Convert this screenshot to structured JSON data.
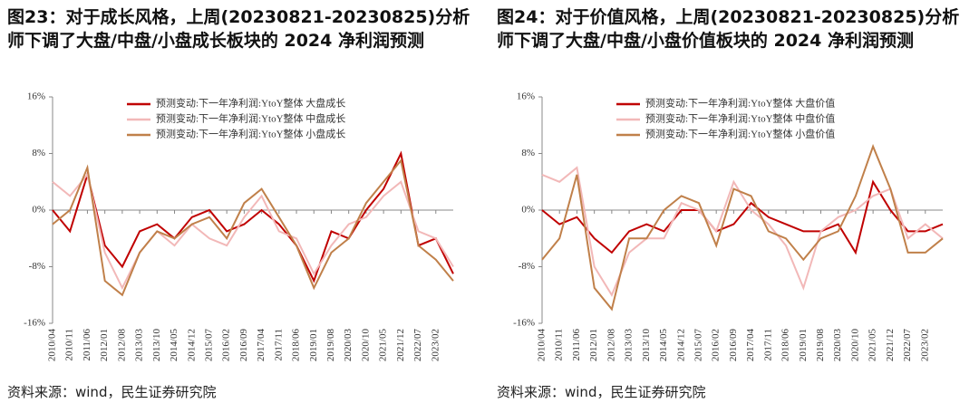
{
  "chart_data": [
    {
      "type": "line",
      "title": "图23：对于成长风格，上周(20230821-20230825)分析师下调了大盘/中盘/小盘成长板块的 2024 净利润预测",
      "source": "资料来源：wind，民生证券研究院",
      "categories": [
        "2010/04",
        "2010/11",
        "2011/06",
        "2012/01",
        "2012/08",
        "2013/03",
        "2013/10",
        "2014/05",
        "2014/12",
        "2015/07",
        "2016/02",
        "2016/09",
        "2017/04",
        "2017/11",
        "2018/06",
        "2019/01",
        "2019/08",
        "2020/03",
        "2020/10",
        "2021/05",
        "2021/12",
        "2022/07",
        "2023/02",
        null
      ],
      "ylim": [
        -16,
        16
      ],
      "yticks": [
        {
          "value": 16,
          "label": "16%"
        },
        {
          "value": 8,
          "label": "8%"
        },
        {
          "value": 0,
          "label": "0%"
        },
        {
          "value": -8,
          "label": "-8%"
        },
        {
          "value": -16,
          "label": "-16%"
        }
      ],
      "legend": "top",
      "series": [
        {
          "name": "预测变动:下一年净利润:YtoY整体 大盘成长",
          "color": "#c00000",
          "values": [
            0,
            -3,
            5,
            -5,
            -8,
            -3,
            -2,
            -4,
            -1,
            0,
            -3,
            -2,
            0,
            -2,
            -5,
            -10,
            -3,
            -4,
            0,
            3,
            8,
            -5,
            -4,
            -9
          ]
        },
        {
          "name": "预测变动:下一年净利润:YtoY整体 中盘成长",
          "color": "#f2b8b8",
          "values": [
            4,
            2,
            5,
            -6,
            -11,
            -6,
            -3,
            -5,
            -2,
            -4,
            -5,
            -1,
            2,
            -3,
            -4,
            -9,
            -5,
            -2,
            -1,
            2,
            4,
            -3,
            -4,
            -8
          ]
        },
        {
          "name": "预测变动:下一年净利润:YtoY整体 小盘成长",
          "color": "#c0804a",
          "values": [
            -2,
            0,
            6,
            -10,
            -12,
            -6,
            -3,
            -4,
            -2,
            -1,
            -4,
            1,
            3,
            -1,
            -5,
            -11,
            -6,
            -4,
            1,
            4,
            7,
            -5,
            -7,
            -10
          ]
        }
      ]
    },
    {
      "type": "line",
      "title": "图24：对于价值风格，上周(20230821-20230825)分析师下调了大盘/中盘/小盘价值板块的 2024 净利润预测",
      "source": "资料来源：wind，民生证券研究院",
      "categories": [
        "2010/04",
        "2010/11",
        "2011/06",
        "2012/01",
        "2012/08",
        "2013/03",
        "2013/10",
        "2014/05",
        "2014/12",
        "2015/07",
        "2016/02",
        "2016/09",
        "2017/04",
        "2017/11",
        "2018/06",
        "2019/01",
        "2019/08",
        "2020/03",
        "2020/10",
        "2021/05",
        "2021/12",
        "2022/07",
        "2023/02",
        null
      ],
      "ylim": [
        -16,
        16
      ],
      "yticks": [
        {
          "value": 16,
          "label": "16%"
        },
        {
          "value": 8,
          "label": "8%"
        },
        {
          "value": 0,
          "label": "0%"
        },
        {
          "value": -8,
          "label": "-8%"
        },
        {
          "value": -16,
          "label": "-16%"
        }
      ],
      "legend": "top",
      "series": [
        {
          "name": "预测变动:下一年净利润:YtoY整体 大盘价值",
          "color": "#c00000",
          "values": [
            0,
            -2,
            -1,
            -4,
            -6,
            -3,
            -2,
            -3,
            0,
            0,
            -3,
            -2,
            1,
            -1,
            -2,
            -3,
            -3,
            -2,
            -6,
            4,
            0,
            -3,
            -3,
            -2
          ]
        },
        {
          "name": "预测变动:下一年净利润:YtoY整体 中盘价值",
          "color": "#f2b8b8",
          "values": [
            5,
            4,
            6,
            -8,
            -12,
            -6,
            -4,
            -4,
            1,
            0,
            -3,
            4,
            0,
            -2,
            -5,
            -11,
            -3,
            -1,
            0,
            2,
            3,
            -4,
            -2,
            -4
          ]
        },
        {
          "name": "预测变动:下一年净利润:YtoY整体 小盘价值",
          "color": "#c0804a",
          "values": [
            -7,
            -4,
            5,
            -11,
            -14,
            -4,
            -4,
            0,
            2,
            1,
            -5,
            3,
            2,
            -3,
            -4,
            -7,
            -4,
            -3,
            2,
            9,
            3,
            -6,
            -6,
            -4
          ]
        }
      ]
    }
  ]
}
